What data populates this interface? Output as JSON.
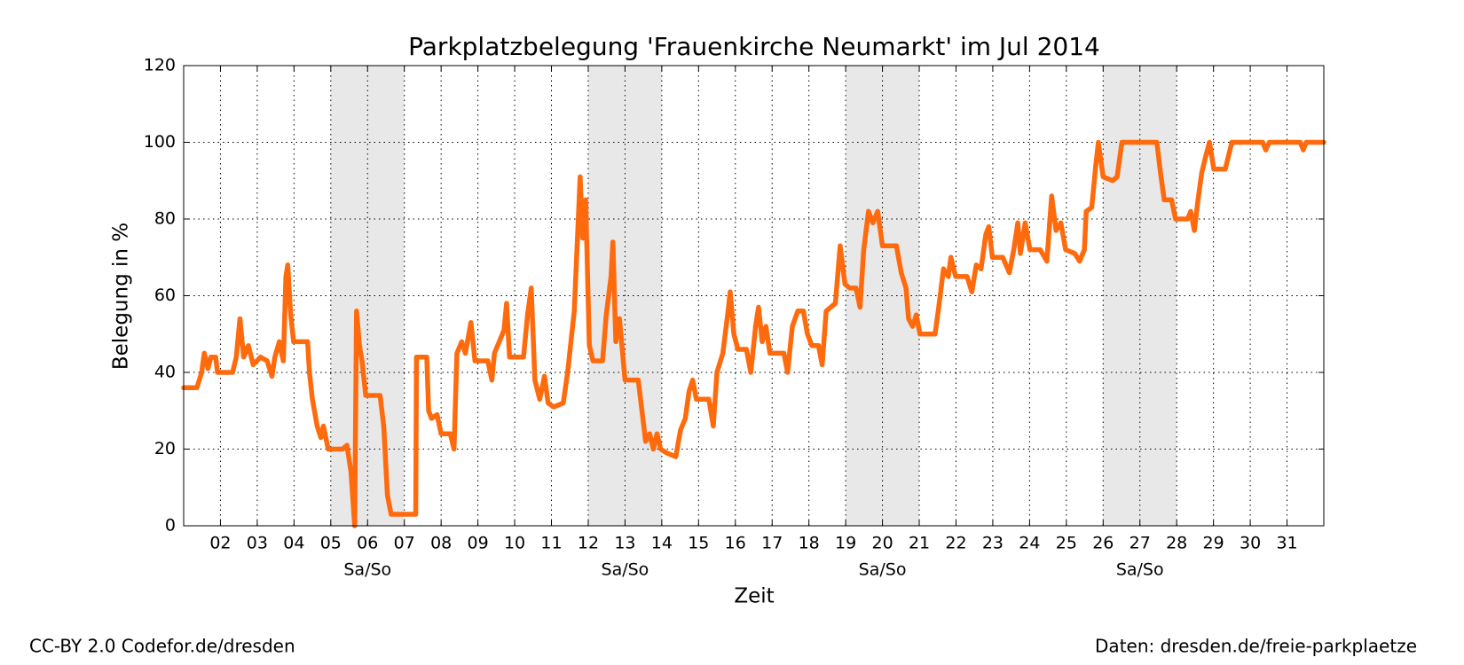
{
  "chart_data": {
    "type": "line",
    "title": "Parkplatzbelegung 'Frauenkirche Neumarkt' im Jul 2014",
    "x_label": "Zeit",
    "y_label": "Belegung in %",
    "color": "#ff6a0d",
    "grid": true,
    "xlim": [
      1,
      32
    ],
    "ylim": [
      0,
      120
    ],
    "yticks": [
      0,
      20,
      40,
      60,
      80,
      100,
      120
    ],
    "xticks": [
      {
        "value": 2,
        "label": "02"
      },
      {
        "value": 3,
        "label": "03"
      },
      {
        "value": 4,
        "label": "04"
      },
      {
        "value": 5,
        "label": "05"
      },
      {
        "value": 6,
        "label": "06"
      },
      {
        "value": 7,
        "label": "07"
      },
      {
        "value": 8,
        "label": "08"
      },
      {
        "value": 9,
        "label": "09"
      },
      {
        "value": 10,
        "label": "10"
      },
      {
        "value": 11,
        "label": "11"
      },
      {
        "value": 12,
        "label": "12"
      },
      {
        "value": 13,
        "label": "13"
      },
      {
        "value": 14,
        "label": "14"
      },
      {
        "value": 15,
        "label": "15"
      },
      {
        "value": 16,
        "label": "16"
      },
      {
        "value": 17,
        "label": "17"
      },
      {
        "value": 18,
        "label": "18"
      },
      {
        "value": 19,
        "label": "19"
      },
      {
        "value": 20,
        "label": "20"
      },
      {
        "value": 21,
        "label": "21"
      },
      {
        "value": 22,
        "label": "22"
      },
      {
        "value": 23,
        "label": "23"
      },
      {
        "value": 24,
        "label": "24"
      },
      {
        "value": 25,
        "label": "25"
      },
      {
        "value": 26,
        "label": "26"
      },
      {
        "value": 27,
        "label": "27"
      },
      {
        "value": 28,
        "label": "28"
      },
      {
        "value": 29,
        "label": "29"
      },
      {
        "value": 30,
        "label": "30"
      },
      {
        "value": 31,
        "label": "31"
      }
    ],
    "weekends": [
      {
        "start": 5,
        "end": 7,
        "label": "Sa/So"
      },
      {
        "start": 12,
        "end": 14,
        "label": "Sa/So"
      },
      {
        "start": 19,
        "end": 21,
        "label": "Sa/So"
      },
      {
        "start": 26,
        "end": 28,
        "label": "Sa/So"
      }
    ],
    "x": [
      1.0,
      1.36,
      1.49,
      1.56,
      1.66,
      1.74,
      1.87,
      1.92,
      2.33,
      2.43,
      2.53,
      2.63,
      2.76,
      2.89,
      3.09,
      3.27,
      3.4,
      3.48,
      3.6,
      3.71,
      3.78,
      3.83,
      3.91,
      3.99,
      4.37,
      4.42,
      4.5,
      4.63,
      4.73,
      4.8,
      4.93,
      5.32,
      5.44,
      5.55,
      5.65,
      5.7,
      5.78,
      5.85,
      5.95,
      6.34,
      6.44,
      6.54,
      6.64,
      7.31,
      7.33,
      7.61,
      7.66,
      7.74,
      7.89,
      8.0,
      8.25,
      8.35,
      8.43,
      8.56,
      8.66,
      8.81,
      8.92,
      9.27,
      9.38,
      9.45,
      9.58,
      9.71,
      9.78,
      9.86,
      10.24,
      10.35,
      10.45,
      10.55,
      10.68,
      10.81,
      10.91,
      11.06,
      11.32,
      11.44,
      11.62,
      11.73,
      11.78,
      11.85,
      11.93,
      12.03,
      12.13,
      12.39,
      12.49,
      12.62,
      12.67,
      12.75,
      12.85,
      13.0,
      13.36,
      13.46,
      13.56,
      13.67,
      13.77,
      13.87,
      13.97,
      14.13,
      14.38,
      14.51,
      14.64,
      14.74,
      14.84,
      14.94,
      15.28,
      15.4,
      15.5,
      15.66,
      15.79,
      15.86,
      15.96,
      16.07,
      16.3,
      16.42,
      16.55,
      16.63,
      16.73,
      16.83,
      16.94,
      17.32,
      17.42,
      17.55,
      17.7,
      17.85,
      17.96,
      18.08,
      18.26,
      18.36,
      18.47,
      18.72,
      18.85,
      18.98,
      19.11,
      19.28,
      19.39,
      19.49,
      19.62,
      19.74,
      19.87,
      20.0,
      20.38,
      20.51,
      20.64,
      20.71,
      20.82,
      20.92,
      21.02,
      21.43,
      21.53,
      21.66,
      21.79,
      21.86,
      21.99,
      22.3,
      22.43,
      22.55,
      22.68,
      22.81,
      22.89,
      22.99,
      23.27,
      23.45,
      23.57,
      23.68,
      23.75,
      23.88,
      24.01,
      24.29,
      24.47,
      24.6,
      24.72,
      24.85,
      24.98,
      25.23,
      25.36,
      25.49,
      25.54,
      25.69,
      25.8,
      25.87,
      26.0,
      26.26,
      26.38,
      26.51,
      27.46,
      27.56,
      27.66,
      27.86,
      27.97,
      28.3,
      28.38,
      28.48,
      28.58,
      28.68,
      28.78,
      28.89,
      29.01,
      29.32,
      29.5,
      30.34,
      30.42,
      30.52,
      31.36,
      31.44,
      31.52,
      32.0
    ],
    "values": [
      36,
      36,
      40,
      45,
      41,
      44,
      44,
      40,
      40,
      44,
      54,
      44,
      47,
      42,
      44,
      43,
      39,
      44,
      48,
      43,
      65,
      68,
      55,
      48,
      48,
      40,
      33,
      26,
      23,
      26,
      20,
      20,
      21,
      14,
      0,
      56,
      47,
      43,
      34,
      34,
      26,
      8,
      3,
      3,
      44,
      44,
      30,
      28,
      29,
      24,
      24,
      20,
      45,
      48,
      45,
      53,
      43,
      43,
      38,
      45,
      48,
      51,
      58,
      44,
      44,
      55,
      62,
      38,
      33,
      39,
      32,
      31,
      32,
      40,
      56,
      80,
      91,
      75,
      85,
      47,
      43,
      43,
      55,
      65,
      74,
      48,
      54,
      38,
      38,
      30,
      22,
      24,
      20,
      24,
      20,
      19,
      18,
      25,
      28,
      35,
      38,
      33,
      33,
      26,
      40,
      45,
      55,
      61,
      50,
      46,
      46,
      40,
      52,
      57,
      48,
      52,
      45,
      45,
      40,
      52,
      56,
      56,
      50,
      47,
      47,
      42,
      56,
      58,
      73,
      63,
      62,
      62,
      57,
      72,
      82,
      79,
      82,
      73,
      73,
      66,
      62,
      54,
      52,
      55,
      50,
      50,
      57,
      67,
      65,
      70,
      65,
      65,
      61,
      68,
      67,
      76,
      78,
      70,
      70,
      66,
      72,
      79,
      71,
      79,
      72,
      72,
      69,
      86,
      77,
      79,
      72,
      71,
      69,
      72,
      82,
      83,
      94,
      100,
      91,
      90,
      91,
      100,
      100,
      92,
      85,
      85,
      80,
      80,
      82,
      77,
      85,
      92,
      96,
      100,
      93,
      93,
      100,
      100,
      98,
      100,
      100,
      98,
      100,
      100
    ]
  },
  "footer": {
    "left": "CC-BY 2.0 Codefor.de/dresden",
    "right": "Daten: dresden.de/freie-parkplaetze"
  }
}
